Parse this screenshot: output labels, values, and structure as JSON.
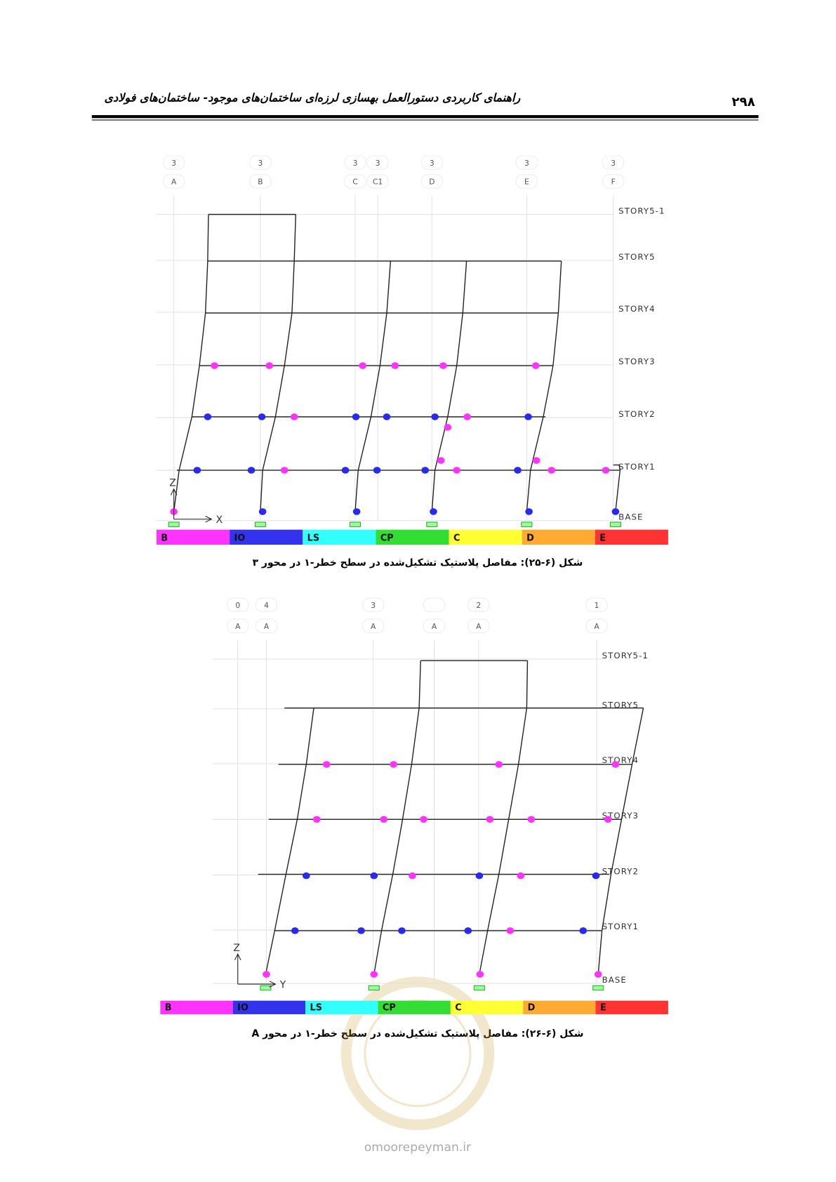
{
  "header": {
    "title": "راهنمای کاربردی دستورالعمل بهسازی لرزه‌ای ساختمان‌های موجود- ساختمان‌های فولادی",
    "page_number": "۲۹۸"
  },
  "figures": [
    {
      "grid_numbers": [
        "3",
        "3",
        "3",
        "3",
        "3",
        "3",
        "3"
      ],
      "grid_letters": [
        "A",
        "B",
        "C",
        "C1",
        "D",
        "E",
        "F"
      ],
      "stories": [
        "STORY5-1",
        "STORY5",
        "STORY4",
        "STORY3",
        "STORY2",
        "STORY1",
        "BASE"
      ],
      "axes": [
        "Z",
        "X"
      ],
      "legend": [
        "B",
        "IO",
        "LS",
        "CP",
        "C",
        "D",
        "E"
      ],
      "caption": "شکل (۶-۲۵): مفاصل پلاستیک تشکیل‌شده در سطح خطر-۱ در محور ۳"
    },
    {
      "grid_numbers": [
        "0",
        "4",
        "3",
        "2",
        "1"
      ],
      "grid_letters": [
        "A",
        "A",
        "A",
        "A",
        "A",
        "A"
      ],
      "stories": [
        "STORY5-1",
        "STORY5",
        "STORY4",
        "STORY3",
        "STORY2",
        "STORY1",
        "BASE"
      ],
      "axes": [
        "Z",
        "Y"
      ],
      "legend": [
        "B",
        "IO",
        "LS",
        "CP",
        "C",
        "D",
        "E"
      ],
      "caption": "شکل (۶-۲۶): مفاصل پلاستیک تشکیل‌شده در سطح خطر-۱ در محور A"
    }
  ],
  "watermark": "omoorepeyman.ir"
}
